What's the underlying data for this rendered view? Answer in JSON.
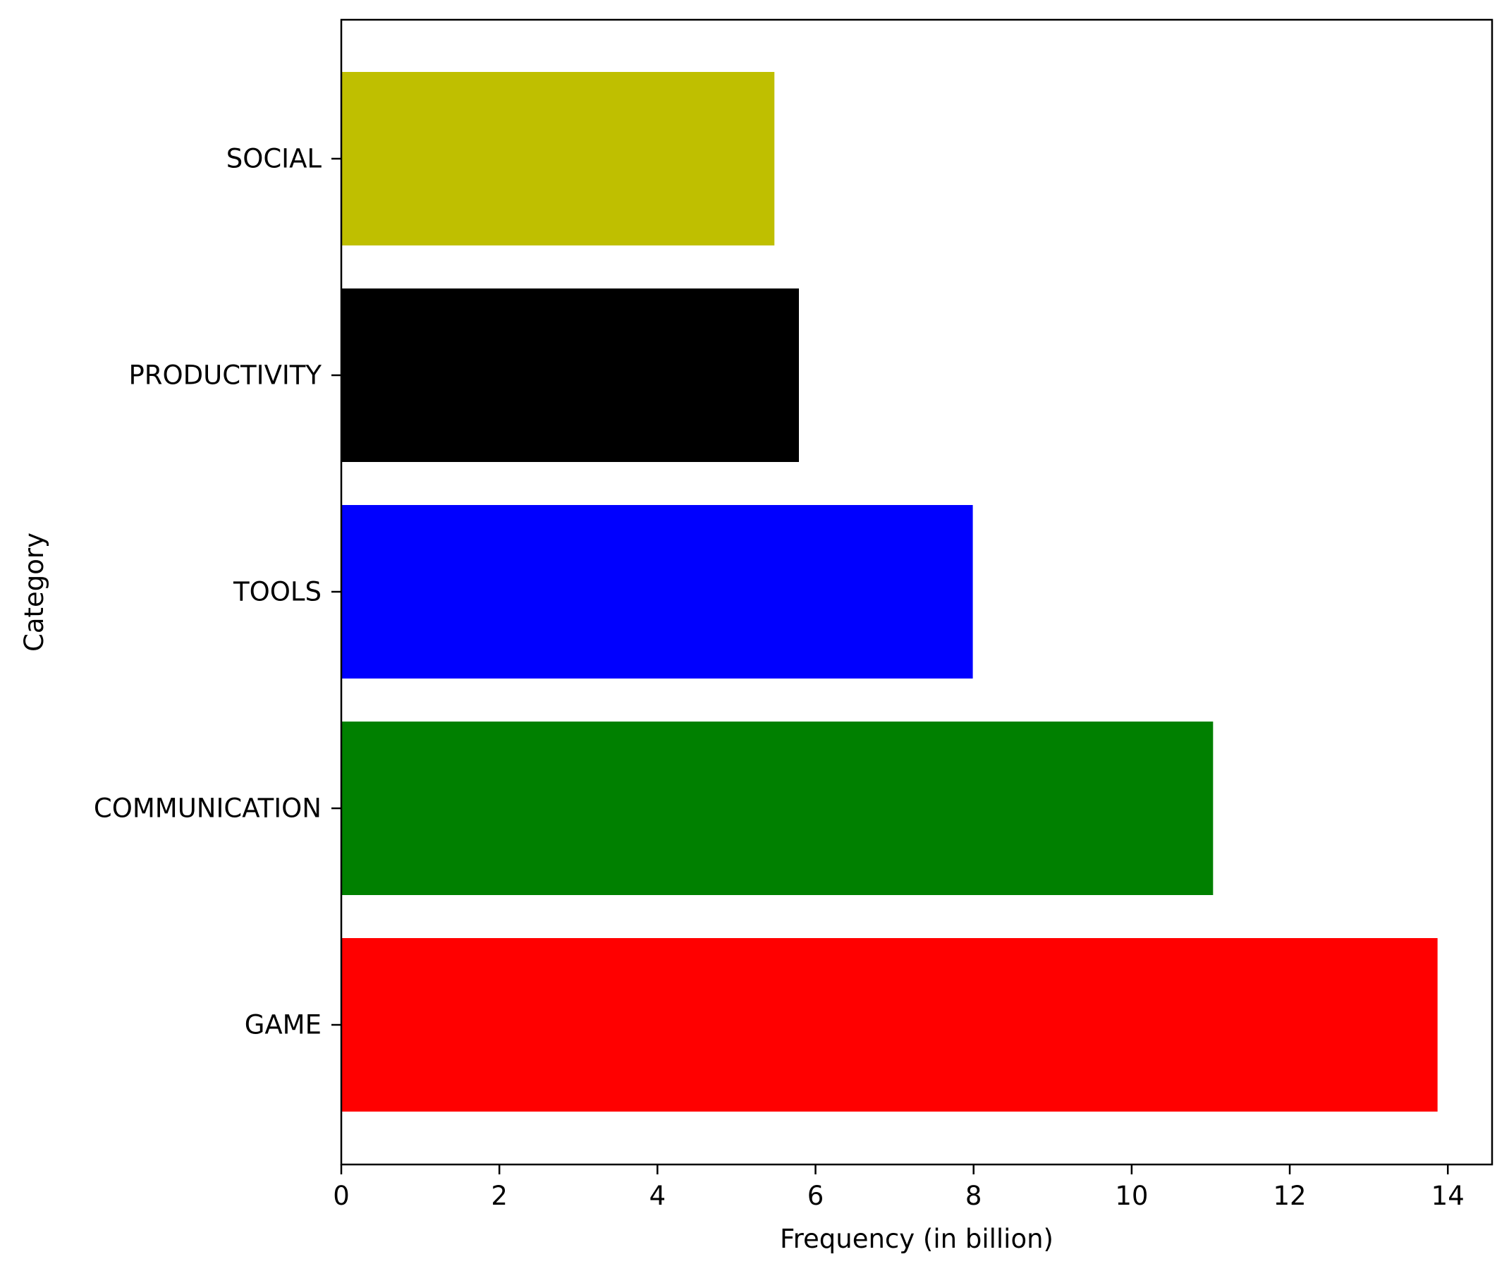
{
  "chart_data": {
    "type": "bar",
    "orientation": "horizontal",
    "categories": [
      "SOCIAL",
      "PRODUCTIVITY",
      "TOOLS",
      "COMMUNICATION",
      "GAME"
    ],
    "values": [
      5.48,
      5.79,
      7.99,
      11.03,
      13.87
    ],
    "colors": [
      "#bfbf00",
      "#000000",
      "#0000ff",
      "#008000",
      "#ff0000"
    ],
    "xlabel": "Frequency (in billion)",
    "ylabel": "Category",
    "xlim": [
      0,
      14.56
    ],
    "xticks": [
      "0",
      "2",
      "4",
      "6",
      "8",
      "10",
      "12",
      "14"
    ],
    "grid": false,
    "legend": "none"
  }
}
